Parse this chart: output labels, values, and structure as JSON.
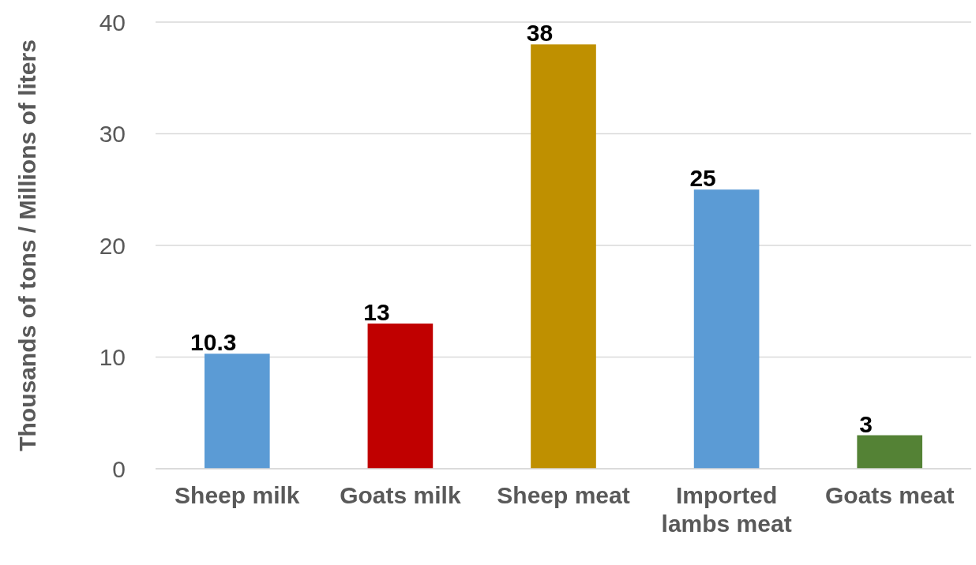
{
  "chart_data": {
    "type": "bar",
    "ylabel": "Thousands of tons / Millions of liters",
    "categories": [
      "Sheep milk",
      "Goats milk",
      "Sheep meat",
      "Imported lambs meat",
      "Goats meat"
    ],
    "values": [
      10.3,
      13,
      38,
      25,
      3
    ],
    "colors": [
      "#5b9bd5",
      "#c00000",
      "#bf9000",
      "#5b9bd5",
      "#548235"
    ],
    "ylim": [
      0,
      40
    ],
    "yticks": [
      0,
      10,
      20,
      30,
      40
    ],
    "grid": "y",
    "data_labels": true
  }
}
